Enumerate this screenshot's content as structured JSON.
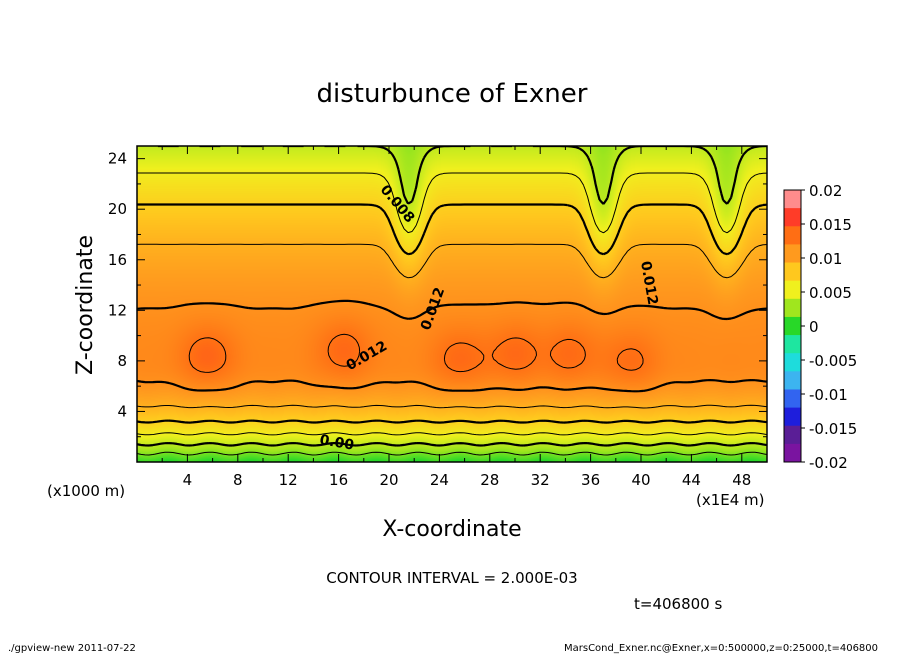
{
  "chart_data": {
    "type": "contour",
    "title": "disturbunce of Exner",
    "xlabel": "X-coordinate",
    "ylabel": "Z-coordinate",
    "x_unit": "(x1E4 m)",
    "y_unit": "(x1000 m)",
    "xlim": [
      0,
      50
    ],
    "ylim": [
      0,
      25
    ],
    "x_ticks": [
      4,
      8,
      12,
      16,
      20,
      24,
      28,
      32,
      36,
      40,
      44,
      48
    ],
    "y_ticks": [
      4,
      8,
      12,
      16,
      20,
      24
    ],
    "contour_interval_text": "CONTOUR INTERVAL = 2.000E-03",
    "time_text": "t=406800 s",
    "footer_left": "./gpview-new   2011-07-22",
    "footer_right": "MarsCond_Exner.nc@Exner,x=0:500000,z=0:25000,t=406800",
    "colorbar": {
      "range": [
        -0.02,
        0.02
      ],
      "tick_labels": [
        "0.02",
        "0.015",
        "0.01",
        "0.005",
        "0",
        "-0.005",
        "-0.01",
        "-0.015",
        "-0.02"
      ],
      "tick_values": [
        0.02,
        0.015,
        0.01,
        0.005,
        0,
        -0.005,
        -0.01,
        -0.015,
        -0.02
      ],
      "colors": [
        "#ff8c8c",
        "#ff3c28",
        "#ff6e14",
        "#ff9a1e",
        "#ffc81e",
        "#f0f01e",
        "#a0e61e",
        "#28d828",
        "#1ee6a0",
        "#1edcdc",
        "#3cb4f0",
        "#3264f0",
        "#1e1edc",
        "#5a1e96",
        "#7a14a0"
      ]
    },
    "contour_labels": [
      {
        "text": "0.008",
        "x": 20.4,
        "z": 20.2
      },
      {
        "text": "0.012",
        "x": 18.4,
        "z": 8.1
      },
      {
        "text": "0.012",
        "x": 23.8,
        "z": 12.0
      },
      {
        "text": "0.012",
        "x": 40.3,
        "z": 14.1
      },
      {
        "text": "0.00",
        "x": 15.8,
        "z": 1.2
      }
    ],
    "peaks": [
      {
        "x": 5.6,
        "z": 8.4,
        "value": 0.0148
      },
      {
        "x": 16.4,
        "z": 8.9,
        "value": 0.0146
      },
      {
        "x": 25.6,
        "z": 8.2,
        "value": 0.0145
      },
      {
        "x": 30.0,
        "z": 8.6,
        "value": 0.0145
      },
      {
        "x": 34.4,
        "z": 8.6,
        "value": 0.0144
      },
      {
        "x": 39.2,
        "z": 8.0,
        "value": 0.0143
      }
    ],
    "troughs": [
      {
        "x": 21.6,
        "z": 14.0,
        "value": 0.0085
      },
      {
        "x": 37.0,
        "z": 14.0,
        "value": 0.0095
      },
      {
        "x": 46.8,
        "z": 16.0,
        "value": 0.0075
      }
    ]
  }
}
